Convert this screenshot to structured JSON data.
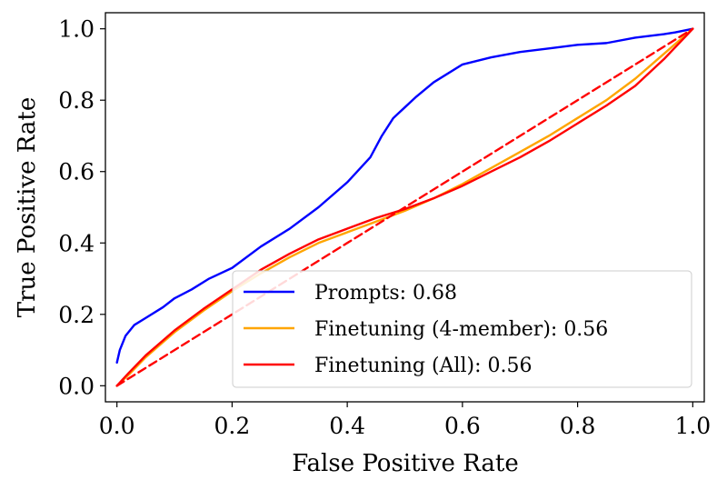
{
  "chart_data": {
    "type": "line",
    "xlabel": "False Positive Rate",
    "ylabel": "True Positive Rate",
    "xlim": [
      -0.02,
      1.02
    ],
    "ylim": [
      -0.045,
      1.045
    ],
    "xticks": [
      0.0,
      0.2,
      0.4,
      0.6,
      0.8,
      1.0
    ],
    "yticks": [
      0.0,
      0.2,
      0.4,
      0.6,
      0.8,
      1.0
    ],
    "xtick_labels": [
      "0.0",
      "0.2",
      "0.4",
      "0.6",
      "0.8",
      "1.0"
    ],
    "ytick_labels": [
      "0.0",
      "0.2",
      "0.4",
      "0.6",
      "0.8",
      "1.0"
    ],
    "grid": false,
    "legend_position": "lower-right",
    "series": [
      {
        "name": "Prompts: 0.68",
        "color": "#0000ff",
        "style": "solid",
        "x": [
          0.0,
          0.005,
          0.015,
          0.03,
          0.05,
          0.08,
          0.1,
          0.13,
          0.16,
          0.2,
          0.25,
          0.3,
          0.35,
          0.4,
          0.44,
          0.46,
          0.48,
          0.5,
          0.52,
          0.55,
          0.6,
          0.65,
          0.7,
          0.75,
          0.8,
          0.85,
          0.9,
          0.95,
          0.97,
          1.0
        ],
        "y": [
          0.065,
          0.1,
          0.14,
          0.17,
          0.19,
          0.22,
          0.245,
          0.27,
          0.3,
          0.33,
          0.39,
          0.44,
          0.5,
          0.57,
          0.64,
          0.7,
          0.75,
          0.78,
          0.81,
          0.85,
          0.9,
          0.92,
          0.935,
          0.945,
          0.955,
          0.96,
          0.975,
          0.985,
          0.99,
          1.0
        ]
      },
      {
        "name": "Finetuning (4-member): 0.56",
        "color": "#ffa500",
        "style": "solid",
        "x": [
          0.0,
          0.02,
          0.05,
          0.1,
          0.15,
          0.2,
          0.25,
          0.3,
          0.35,
          0.4,
          0.45,
          0.5,
          0.55,
          0.6,
          0.65,
          0.7,
          0.75,
          0.8,
          0.85,
          0.9,
          0.95,
          1.0
        ],
        "y": [
          0.0,
          0.03,
          0.08,
          0.15,
          0.21,
          0.265,
          0.315,
          0.36,
          0.4,
          0.43,
          0.46,
          0.49,
          0.525,
          0.565,
          0.61,
          0.655,
          0.7,
          0.75,
          0.8,
          0.86,
          0.93,
          1.0
        ]
      },
      {
        "name": "Finetuning (All): 0.56",
        "color": "#ff0000",
        "style": "solid",
        "x": [
          0.0,
          0.02,
          0.05,
          0.1,
          0.15,
          0.2,
          0.25,
          0.3,
          0.35,
          0.4,
          0.45,
          0.5,
          0.55,
          0.6,
          0.65,
          0.7,
          0.75,
          0.8,
          0.85,
          0.9,
          0.95,
          1.0
        ],
        "y": [
          0.0,
          0.035,
          0.085,
          0.155,
          0.215,
          0.27,
          0.325,
          0.37,
          0.41,
          0.44,
          0.47,
          0.495,
          0.525,
          0.56,
          0.6,
          0.64,
          0.685,
          0.735,
          0.785,
          0.84,
          0.915,
          1.0
        ]
      },
      {
        "color": "#ff0000",
        "style": "dashed",
        "x": [
          0.0,
          1.0
        ],
        "y": [
          0.0,
          1.0
        ]
      }
    ]
  }
}
